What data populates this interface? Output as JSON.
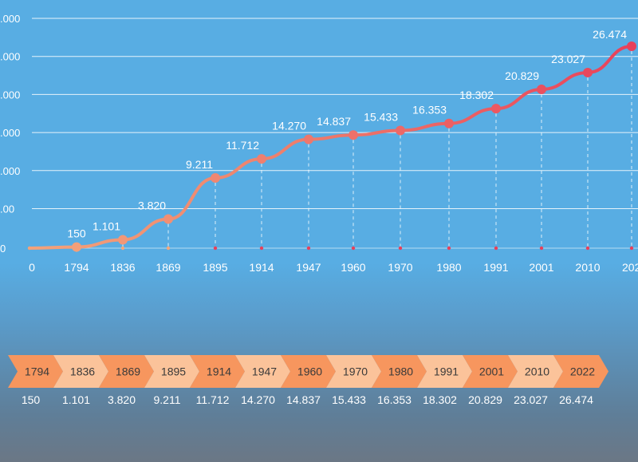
{
  "colors": {
    "background": "#58ade3",
    "line_start": "#f4a77c",
    "line_end": "#e8405a",
    "chevron_dark": "#f7965e",
    "chevron_light": "#fbc39a"
  },
  "chart_data": {
    "type": "line",
    "title": "",
    "xlabel": "",
    "ylabel": "",
    "y_tick_labels": [
      ".000",
      ".000",
      ".000",
      ".000",
      ".000",
      ".00",
      "0"
    ],
    "x_tick_labels": [
      "0",
      "1794",
      "1836",
      "1869",
      "1895",
      "1914",
      "1947",
      "1960",
      "1970",
      "1980",
      "1991",
      "2001",
      "2010",
      "202"
    ],
    "series": [
      {
        "values": [
          0,
          150,
          1101,
          3820,
          9211,
          11712,
          14270,
          14837,
          15433,
          16353,
          18302,
          20829,
          23027,
          26474
        ],
        "labels": [
          "",
          "150",
          "1.101",
          "3.820",
          "9.211",
          "11.712",
          "14.270",
          "14.837",
          "15.433",
          "16.353",
          "18.302",
          "20.829",
          "23.027",
          "26.474"
        ]
      }
    ],
    "grid": true,
    "legend": "none"
  },
  "timeline": {
    "years": [
      "1794",
      "1836",
      "1869",
      "1895",
      "1914",
      "1947",
      "1960",
      "1970",
      "1980",
      "1991",
      "2001",
      "2010",
      "2022"
    ],
    "values": [
      "150",
      "1.101",
      "3.820",
      "9.211",
      "11.712",
      "14.270",
      "14.837",
      "15.433",
      "16.353",
      "18.302",
      "20.829",
      "23.027",
      "26.474"
    ]
  }
}
